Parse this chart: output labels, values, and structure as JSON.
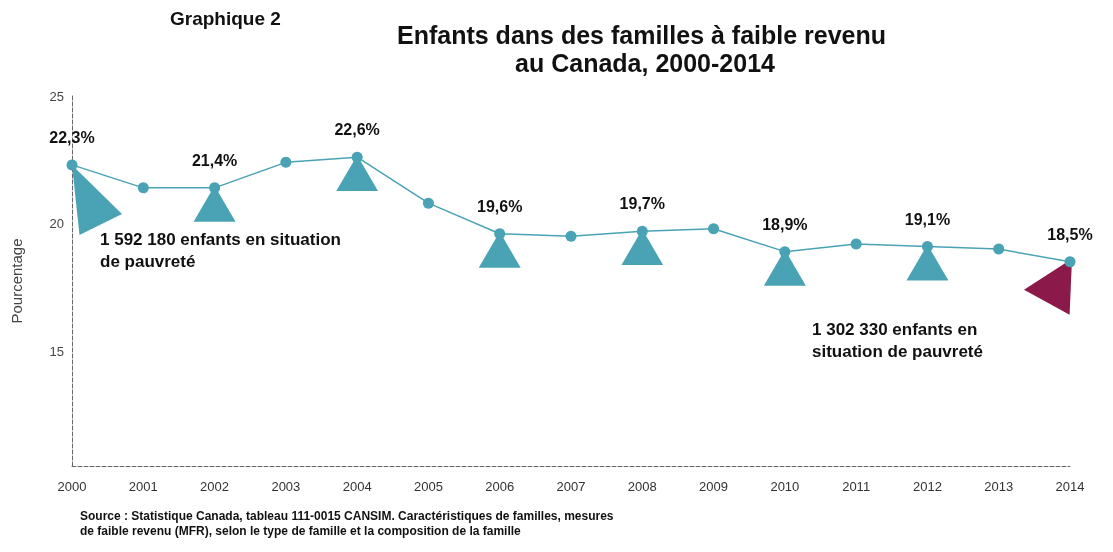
{
  "chart_data": {
    "type": "line",
    "subtitle": "Graphique 2",
    "title": "Enfants dans des familles à faible revenu au Canada, 2000-2014",
    "ylabel": "Pourcentage",
    "categories": [
      "2000",
      "2001",
      "2002",
      "2003",
      "2004",
      "2005",
      "2006",
      "2007",
      "2008",
      "2009",
      "2010",
      "2011",
      "2012",
      "2013",
      "2014"
    ],
    "series": [
      {
        "color": "#4aa3b5",
        "values": [
          22.3,
          21.4,
          21.4,
          22.4,
          22.6,
          20.8,
          19.6,
          19.5,
          19.7,
          19.8,
          18.9,
          19.2,
          19.1,
          19.0,
          18.5
        ],
        "value_labels": [
          "22,3%",
          null,
          "21,4%",
          null,
          "22,6%",
          null,
          "19,6%",
          null,
          "19,7%",
          null,
          "18,9%",
          null,
          "19,1%",
          null,
          "18,5%"
        ]
      }
    ],
    "ylim": [
      10.5,
      25
    ],
    "yticks": [
      15,
      20,
      25
    ],
    "grid": false,
    "marker": "circle",
    "line_style": "solid",
    "annotations": [
      "1 592 180 enfants en situation de pauvreté",
      "1 302 330 enfants en situation de pauvreté",
      "Source : Statistique Canada, tableau 111-0015 CANSIM. Caractéristiques de familles, mesures de faible revenu (MFR), selon le type de famille et la composition de la famille"
    ]
  }
}
